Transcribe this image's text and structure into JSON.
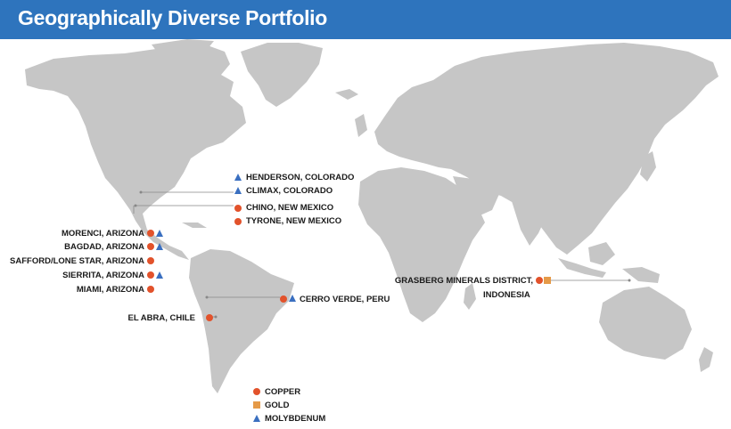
{
  "header": {
    "title": "Geographically Diverse Portfolio"
  },
  "colors": {
    "header_bg": "#2e74bd",
    "land": "#c6c6c6",
    "copper": "#e2522b",
    "gold": "#e59a48",
    "molybdenum": "#3a6fc0"
  },
  "sites": {
    "henderson": {
      "label": "HENDERSON, COLORADO",
      "markers": [
        "molybdenum"
      ]
    },
    "climax": {
      "label": "CLIMAX, COLORADO",
      "markers": [
        "molybdenum"
      ]
    },
    "chino": {
      "label": "CHINO, NEW MEXICO",
      "markers": [
        "copper"
      ]
    },
    "tyrone": {
      "label": "TYRONE, NEW MEXICO",
      "markers": [
        "copper"
      ]
    },
    "morenci": {
      "label": "MORENCI, ARIZONA",
      "markers": [
        "copper",
        "molybdenum"
      ]
    },
    "bagdad": {
      "label": "BAGDAD, ARIZONA",
      "markers": [
        "copper",
        "molybdenum"
      ]
    },
    "safford": {
      "label": "SAFFORD/LONE STAR, ARIZONA",
      "markers": [
        "copper"
      ]
    },
    "sierrita": {
      "label": "SIERRITA, ARIZONA",
      "markers": [
        "copper",
        "molybdenum"
      ]
    },
    "miami": {
      "label": "MIAMI, ARIZONA",
      "markers": [
        "copper"
      ]
    },
    "cerro_verde": {
      "label": "CERRO VERDE, PERU",
      "markers": [
        "copper",
        "molybdenum"
      ]
    },
    "el_abra": {
      "label": "EL ABRA, CHILE",
      "markers": [
        "copper"
      ]
    },
    "grasberg": {
      "label_line1": "GRASBERG MINERALS DISTRICT,",
      "label_line2": "INDONESIA",
      "markers": [
        "copper",
        "gold"
      ]
    }
  },
  "legend": {
    "copper": "COPPER",
    "gold": "GOLD",
    "molybdenum": "MOLYBDENUM"
  }
}
